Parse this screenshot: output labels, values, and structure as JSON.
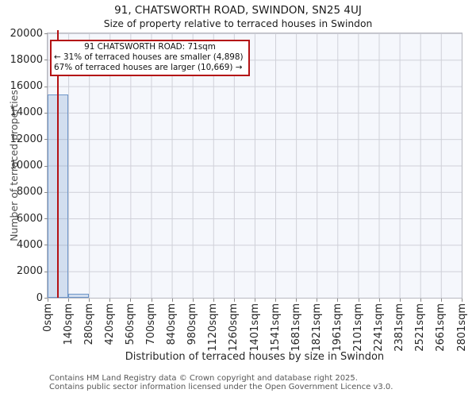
{
  "header": {
    "title": "91, CHATSWORTH ROAD, SWINDON, SN25 4UJ",
    "subtitle": "Size of property relative to terraced houses in Swindon"
  },
  "annotation": {
    "line1": "91 CHATSWORTH ROAD: 71sqm",
    "line2": "← 31% of terraced houses are smaller (4,898)",
    "line3": "67% of terraced houses are larger (10,669) →"
  },
  "chart_data": {
    "type": "bar",
    "title": "91, CHATSWORTH ROAD, SWINDON, SN25 4UJ",
    "subtitle": "Size of property relative to terraced houses in Swindon",
    "xlabel": "Distribution of terraced houses by size in Swindon",
    "ylabel": "Number of terraced properties",
    "x_tick_labels": [
      "0sqm",
      "140sqm",
      "280sqm",
      "420sqm",
      "560sqm",
      "700sqm",
      "840sqm",
      "980sqm",
      "1120sqm",
      "1260sqm",
      "1401sqm",
      "1541sqm",
      "1681sqm",
      "1821sqm",
      "1961sqm",
      "2101sqm",
      "2241sqm",
      "2381sqm",
      "2521sqm",
      "2661sqm",
      "2801sqm"
    ],
    "y_tick_labels": [
      "0",
      "2000",
      "4000",
      "6000",
      "8000",
      "10000",
      "12000",
      "14000",
      "16000",
      "18000",
      "20000"
    ],
    "ylim": [
      0,
      20000
    ],
    "xlim_sqm": [
      0,
      2801
    ],
    "bin_width_sqm": 140,
    "bin_values": [
      15400,
      290,
      0,
      0,
      0,
      0,
      0,
      0,
      0,
      0,
      0,
      0,
      0,
      0,
      0,
      0,
      0,
      0,
      0,
      0
    ],
    "marker_sqm": 71,
    "grid": true,
    "legend": false
  },
  "footer": {
    "line1": "Contains HM Land Registry data © Crown copyright and database right 2025.",
    "line2": "Contains public sector information licensed under the Open Government Licence v3.0."
  },
  "colors": {
    "bar_fill": "rgba(109,149,200,0.25)",
    "bar_edge": "#6d95c8",
    "marker_line": "#b41114",
    "annotation_border": "#b41114",
    "plot_bg": "#f5f7fc",
    "grid_line": "#cfd0d8"
  }
}
